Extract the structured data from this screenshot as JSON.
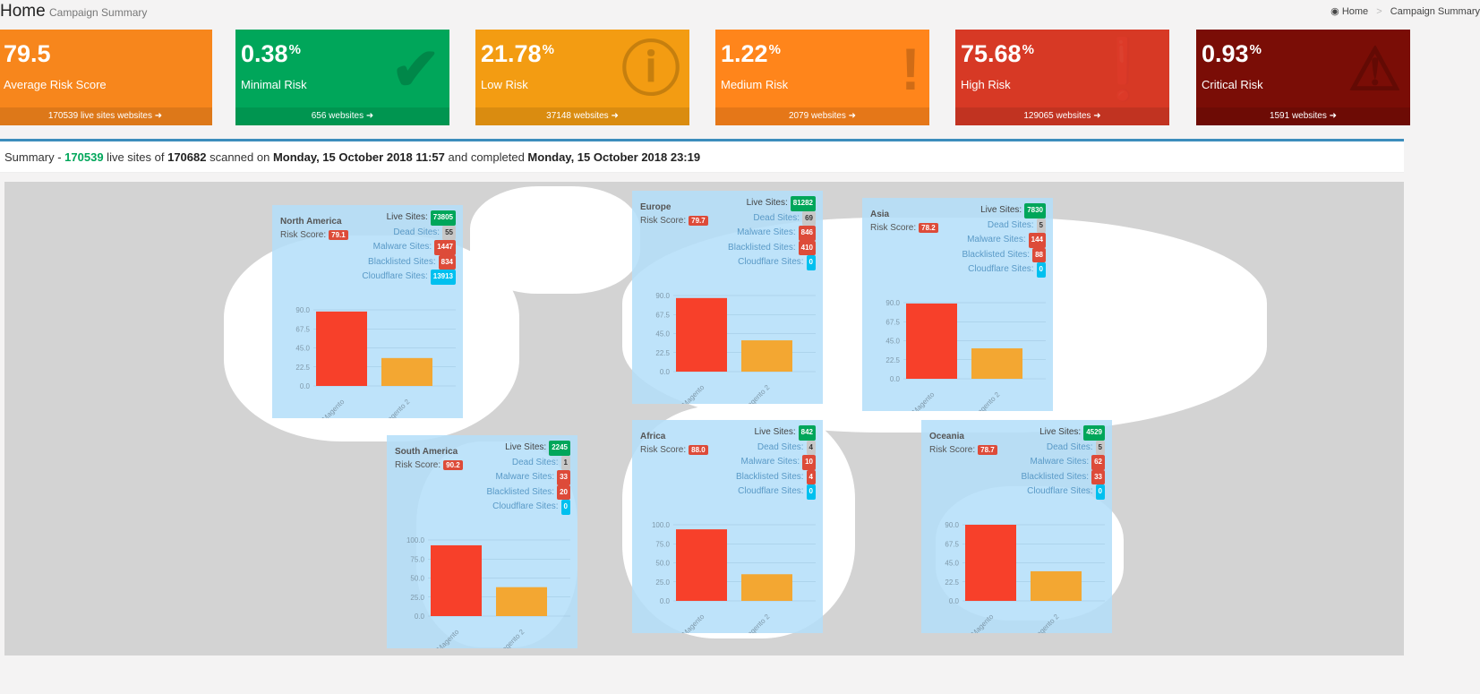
{
  "header": {
    "title": "Home",
    "subtitle": "Campaign Summary",
    "breadcrumb": {
      "home": "Home",
      "current": "Campaign Summary"
    }
  },
  "cards": [
    {
      "value": "79.5",
      "unit": "",
      "label": "Average Risk Score",
      "footer": "170539 live sites websites",
      "color": "#f7861c",
      "icon": "code-icon",
      "glyph": "</>"
    },
    {
      "value": "0.38",
      "unit": "%",
      "label": "Minimal Risk",
      "footer": "656 websites",
      "color": "#00a65a",
      "icon": "check-icon",
      "glyph": "✔"
    },
    {
      "value": "21.78",
      "unit": "%",
      "label": "Low Risk",
      "footer": "37148 websites",
      "color": "#f39c12",
      "icon": "info-icon",
      "glyph": "ⓘ"
    },
    {
      "value": "1.22",
      "unit": "%",
      "label": "Medium Risk",
      "footer": "2079 websites",
      "color": "#ff851b",
      "icon": "exclamation-icon",
      "glyph": "!"
    },
    {
      "value": "75.68",
      "unit": "%",
      "label": "High Risk",
      "footer": "129065 websites",
      "color": "#d73925",
      "icon": "exclamation-circle-icon",
      "glyph": "❗"
    },
    {
      "value": "0.93",
      "unit": "%",
      "label": "Critical Risk",
      "footer": "1591 websites",
      "color": "#7a0d06",
      "icon": "warning-icon",
      "glyph": "⚠"
    }
  ],
  "summary": {
    "prefix": "Summary - ",
    "live": "170539",
    "t1": " live sites of ",
    "total": "170682",
    "t2": " scanned on ",
    "started": "Monday, 15 October 2018 11:57",
    "t3": " and completed ",
    "completed": "Monday, 15 October 2018 23:19"
  },
  "labels": {
    "live": "Live Sites:",
    "dead": "Dead Sites:",
    "malware": "Malware Sites:",
    "blacklisted": "Blacklisted Sites:",
    "cloudflare": "Cloudflare Sites:",
    "risk": "Risk Score:"
  },
  "colors": {
    "live": "#00a65a",
    "dead": "#c8c8c8",
    "malware": "#dd4b39",
    "blacklisted": "#dd4b39",
    "cloudflare": "#00c0ef",
    "risk": "#dd4b39",
    "magento": "#f7402a",
    "magento2": "#f3a732"
  },
  "regions": [
    {
      "name": "North America",
      "risk": "79.1",
      "live": "73805",
      "dead": "55",
      "malware": "1447",
      "blacklisted": "834",
      "cloudflare": "13913",
      "chart_data": {
        "type": "bar",
        "categories": [
          "Magento",
          "Magento 2"
        ],
        "values": [
          88,
          33
        ],
        "ylim": [
          0,
          90
        ],
        "ticks": [
          "0.0",
          "22.5",
          "45.0",
          "67.5",
          "90.0"
        ]
      }
    },
    {
      "name": "Europe",
      "risk": "79.7",
      "live": "81282",
      "dead": "69",
      "malware": "846",
      "blacklisted": "410",
      "cloudflare": "0",
      "chart_data": {
        "type": "bar",
        "categories": [
          "Magento",
          "Magento 2"
        ],
        "values": [
          87,
          37
        ],
        "ylim": [
          0,
          90
        ],
        "ticks": [
          "0.0",
          "22.5",
          "45.0",
          "67.5",
          "90.0"
        ]
      }
    },
    {
      "name": "Asia",
      "risk": "78.2",
      "live": "7830",
      "dead": "5",
      "malware": "144",
      "blacklisted": "88",
      "cloudflare": "0",
      "chart_data": {
        "type": "bar",
        "categories": [
          "Magento",
          "Magento 2"
        ],
        "values": [
          89,
          36
        ],
        "ylim": [
          0,
          90
        ],
        "ticks": [
          "0.0",
          "22.5",
          "45.0",
          "67.5",
          "90.0"
        ]
      }
    },
    {
      "name": "South America",
      "risk": "90.2",
      "live": "2245",
      "dead": "1",
      "malware": "33",
      "blacklisted": "20",
      "cloudflare": "0",
      "chart_data": {
        "type": "bar",
        "categories": [
          "Magento",
          "Magento 2"
        ],
        "values": [
          93,
          38
        ],
        "ylim": [
          0,
          100
        ],
        "ticks": [
          "0.0",
          "25.0",
          "50.0",
          "75.0",
          "100.0"
        ]
      }
    },
    {
      "name": "Africa",
      "risk": "88.0",
      "live": "842",
      "dead": "4",
      "malware": "10",
      "blacklisted": "4",
      "cloudflare": "0",
      "chart_data": {
        "type": "bar",
        "categories": [
          "Magento",
          "Magento 2"
        ],
        "values": [
          94,
          35
        ],
        "ylim": [
          0,
          100
        ],
        "ticks": [
          "0.0",
          "25.0",
          "50.0",
          "75.0",
          "100.0"
        ]
      }
    },
    {
      "name": "Oceania",
      "risk": "78.7",
      "live": "4529",
      "dead": "5",
      "malware": "62",
      "blacklisted": "33",
      "cloudflare": "0",
      "chart_data": {
        "type": "bar",
        "categories": [
          "Magento",
          "Magento 2"
        ],
        "values": [
          90,
          35
        ],
        "ylim": [
          0,
          90
        ],
        "ticks": [
          "0.0",
          "22.5",
          "45.0",
          "67.5",
          "90.0"
        ]
      }
    }
  ]
}
